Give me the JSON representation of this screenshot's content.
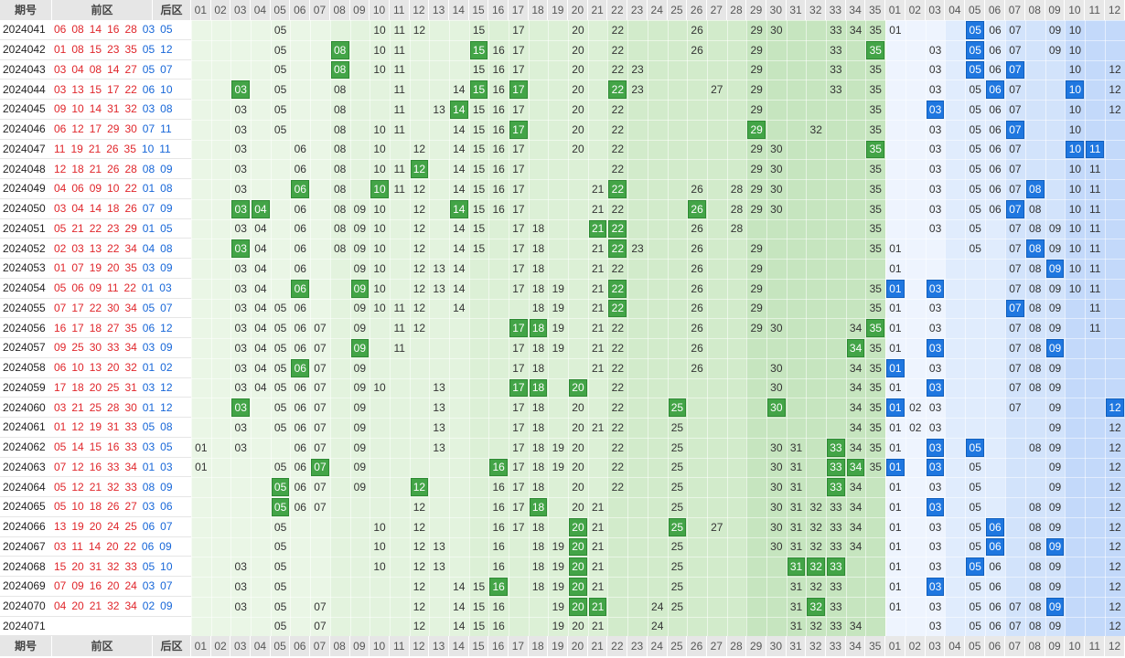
{
  "headers": {
    "issue": "期号",
    "front": "前区",
    "back": "后区"
  },
  "front_numbers": [
    "01",
    "02",
    "03",
    "04",
    "05",
    "06",
    "07",
    "08",
    "09",
    "10",
    "11",
    "12",
    "13",
    "14",
    "15",
    "16",
    "17",
    "18",
    "19",
    "20",
    "21",
    "22",
    "23",
    "24",
    "25",
    "26",
    "27",
    "28",
    "29",
    "30",
    "31",
    "32",
    "33",
    "34",
    "35"
  ],
  "back_numbers": [
    "01",
    "02",
    "03",
    "04",
    "05",
    "06",
    "07",
    "08",
    "09",
    "10",
    "11",
    "12"
  ],
  "colors": {
    "front_hit": "#43a447",
    "back_hit": "#1f77e0",
    "red_text": "#e0262b",
    "blue_text": "#1666d8"
  },
  "rows": [
    {
      "issue": "2024041",
      "front": [
        "06",
        "08",
        "14",
        "16",
        "28"
      ],
      "back": [
        "03",
        "05"
      ],
      "fshown": [
        5,
        10,
        11,
        12,
        15,
        17,
        20,
        22,
        26,
        29,
        30,
        33,
        34,
        35
      ],
      "bshown": [
        1,
        5,
        6,
        7,
        9,
        10
      ],
      "fhit": [],
      "bhit": [
        5
      ]
    },
    {
      "issue": "2024042",
      "front": [
        "01",
        "08",
        "15",
        "23",
        "35"
      ],
      "back": [
        "05",
        "12"
      ],
      "fshown": [
        5,
        8,
        10,
        11,
        15,
        16,
        17,
        20,
        22,
        26,
        29,
        33,
        35
      ],
      "bshown": [
        3,
        5,
        6,
        7,
        9,
        10
      ],
      "fhit": [
        8,
        15,
        35
      ],
      "bhit": [
        5
      ]
    },
    {
      "issue": "2024043",
      "front": [
        "03",
        "04",
        "08",
        "14",
        "27"
      ],
      "back": [
        "05",
        "07"
      ],
      "fshown": [
        5,
        8,
        10,
        11,
        15,
        16,
        17,
        20,
        22,
        23,
        29,
        33,
        35
      ],
      "bshown": [
        3,
        5,
        6,
        7,
        10,
        12
      ],
      "fhit": [
        8
      ],
      "bhit": [
        5,
        7
      ]
    },
    {
      "issue": "2024044",
      "front": [
        "03",
        "13",
        "15",
        "17",
        "22"
      ],
      "back": [
        "06",
        "10"
      ],
      "fshown": [
        3,
        5,
        8,
        11,
        14,
        15,
        16,
        17,
        20,
        22,
        23,
        27,
        29,
        33,
        35
      ],
      "bshown": [
        3,
        5,
        6,
        7,
        10,
        12
      ],
      "fhit": [
        3,
        15,
        17,
        22
      ],
      "bhit": [
        6,
        10
      ]
    },
    {
      "issue": "2024045",
      "front": [
        "09",
        "10",
        "14",
        "31",
        "32"
      ],
      "back": [
        "03",
        "08"
      ],
      "fshown": [
        3,
        5,
        8,
        11,
        13,
        14,
        15,
        16,
        17,
        20,
        22,
        29,
        35
      ],
      "bshown": [
        3,
        5,
        6,
        7,
        10,
        12
      ],
      "fhit": [
        14
      ],
      "bhit": [
        3
      ]
    },
    {
      "issue": "2024046",
      "front": [
        "06",
        "12",
        "17",
        "29",
        "30"
      ],
      "back": [
        "07",
        "11"
      ],
      "fshown": [
        3,
        5,
        8,
        10,
        11,
        14,
        15,
        16,
        17,
        20,
        22,
        29,
        32,
        35
      ],
      "bshown": [
        3,
        5,
        6,
        7,
        10
      ],
      "fhit": [
        17,
        29
      ],
      "bhit": [
        7
      ]
    },
    {
      "issue": "2024047",
      "front": [
        "11",
        "19",
        "21",
        "26",
        "35"
      ],
      "back": [
        "10",
        "11"
      ],
      "fshown": [
        3,
        6,
        8,
        10,
        12,
        14,
        15,
        16,
        17,
        20,
        22,
        29,
        30,
        35
      ],
      "bshown": [
        3,
        5,
        6,
        7,
        10,
        11
      ],
      "fhit": [
        35
      ],
      "bhit": [
        10,
        11
      ]
    },
    {
      "issue": "2024048",
      "front": [
        "12",
        "18",
        "21",
        "26",
        "28"
      ],
      "back": [
        "08",
        "09"
      ],
      "fshown": [
        3,
        6,
        8,
        10,
        11,
        12,
        14,
        15,
        16,
        17,
        22,
        29,
        30,
        35
      ],
      "bshown": [
        3,
        5,
        6,
        7,
        10,
        11
      ],
      "fhit": [
        12
      ],
      "bhit": []
    },
    {
      "issue": "2024049",
      "front": [
        "04",
        "06",
        "09",
        "10",
        "22"
      ],
      "back": [
        "01",
        "08"
      ],
      "fshown": [
        3,
        6,
        8,
        10,
        11,
        12,
        14,
        15,
        16,
        17,
        21,
        22,
        26,
        28,
        29,
        30,
        35
      ],
      "bshown": [
        3,
        5,
        6,
        7,
        8,
        10,
        11
      ],
      "fhit": [
        6,
        10,
        22
      ],
      "bhit": [
        8
      ]
    },
    {
      "issue": "2024050",
      "front": [
        "03",
        "04",
        "14",
        "18",
        "26"
      ],
      "back": [
        "07",
        "09"
      ],
      "fshown": [
        3,
        4,
        6,
        8,
        9,
        10,
        12,
        14,
        15,
        16,
        17,
        21,
        22,
        26,
        28,
        29,
        30,
        35
      ],
      "bshown": [
        3,
        5,
        6,
        7,
        8,
        10,
        11
      ],
      "fhit": [
        3,
        4,
        14,
        26
      ],
      "bhit": [
        7
      ]
    },
    {
      "issue": "2024051",
      "front": [
        "05",
        "21",
        "22",
        "23",
        "29"
      ],
      "back": [
        "01",
        "05"
      ],
      "fshown": [
        3,
        4,
        6,
        8,
        9,
        10,
        12,
        14,
        15,
        17,
        18,
        21,
        22,
        26,
        28,
        35
      ],
      "bshown": [
        3,
        5,
        7,
        8,
        9,
        10,
        11
      ],
      "fhit": [
        21,
        22
      ],
      "bhit": []
    },
    {
      "issue": "2024052",
      "front": [
        "02",
        "03",
        "13",
        "22",
        "34"
      ],
      "back": [
        "04",
        "08"
      ],
      "fshown": [
        3,
        4,
        6,
        8,
        9,
        10,
        12,
        14,
        15,
        17,
        18,
        21,
        22,
        23,
        26,
        29,
        35
      ],
      "bshown": [
        1,
        5,
        7,
        8,
        9,
        10,
        11
      ],
      "fhit": [
        3,
        22
      ],
      "bhit": [
        8
      ]
    },
    {
      "issue": "2024053",
      "front": [
        "01",
        "07",
        "19",
        "20",
        "35"
      ],
      "back": [
        "03",
        "09"
      ],
      "fshown": [
        3,
        4,
        6,
        9,
        10,
        12,
        13,
        14,
        17,
        18,
        21,
        22,
        26,
        29
      ],
      "bshown": [
        1,
        7,
        8,
        9,
        10,
        11
      ],
      "fhit": [],
      "bhit": [
        9
      ]
    },
    {
      "issue": "2024054",
      "front": [
        "05",
        "06",
        "09",
        "11",
        "22"
      ],
      "back": [
        "01",
        "03"
      ],
      "fshown": [
        3,
        4,
        6,
        9,
        10,
        12,
        13,
        14,
        17,
        18,
        19,
        21,
        22,
        26,
        29,
        35
      ],
      "bshown": [
        1,
        3,
        7,
        8,
        9,
        10,
        11
      ],
      "fhit": [
        6,
        9,
        22
      ],
      "bhit": [
        1,
        3
      ]
    },
    {
      "issue": "2024055",
      "front": [
        "07",
        "17",
        "22",
        "30",
        "34"
      ],
      "back": [
        "05",
        "07"
      ],
      "fshown": [
        3,
        4,
        5,
        6,
        9,
        10,
        11,
        12,
        14,
        18,
        19,
        21,
        22,
        26,
        29,
        35
      ],
      "bshown": [
        1,
        3,
        7,
        8,
        9,
        11
      ],
      "fhit": [
        22
      ],
      "bhit": [
        7
      ]
    },
    {
      "issue": "2024056",
      "front": [
        "16",
        "17",
        "18",
        "27",
        "35"
      ],
      "back": [
        "06",
        "12"
      ],
      "fshown": [
        3,
        4,
        5,
        6,
        7,
        9,
        11,
        12,
        17,
        18,
        19,
        21,
        22,
        26,
        29,
        30,
        34,
        35
      ],
      "bshown": [
        1,
        3,
        7,
        8,
        9,
        11
      ],
      "fhit": [
        17,
        18,
        35
      ],
      "bhit": []
    },
    {
      "issue": "2024057",
      "front": [
        "09",
        "25",
        "30",
        "33",
        "34"
      ],
      "back": [
        "03",
        "09"
      ],
      "fshown": [
        3,
        4,
        5,
        6,
        7,
        9,
        11,
        17,
        18,
        19,
        21,
        22,
        26,
        34,
        35
      ],
      "bshown": [
        1,
        3,
        7,
        8,
        9
      ],
      "fhit": [
        9,
        34
      ],
      "bhit": [
        3,
        9
      ]
    },
    {
      "issue": "2024058",
      "front": [
        "06",
        "10",
        "13",
        "20",
        "32"
      ],
      "back": [
        "01",
        "02"
      ],
      "fshown": [
        3,
        4,
        5,
        6,
        7,
        9,
        17,
        18,
        21,
        22,
        26,
        30,
        34,
        35
      ],
      "bshown": [
        1,
        3,
        7,
        8,
        9
      ],
      "fhit": [
        6
      ],
      "bhit": [
        1
      ]
    },
    {
      "issue": "2024059",
      "front": [
        "17",
        "18",
        "20",
        "25",
        "31"
      ],
      "back": [
        "03",
        "12"
      ],
      "fshown": [
        3,
        4,
        5,
        6,
        7,
        9,
        10,
        13,
        17,
        18,
        20,
        22,
        30,
        34,
        35
      ],
      "bshown": [
        1,
        3,
        7,
        8,
        9
      ],
      "fhit": [
        17,
        18,
        20
      ],
      "bhit": [
        3
      ]
    },
    {
      "issue": "2024060",
      "front": [
        "03",
        "21",
        "25",
        "28",
        "30"
      ],
      "back": [
        "01",
        "12"
      ],
      "fshown": [
        3,
        5,
        6,
        7,
        9,
        13,
        17,
        18,
        20,
        22,
        25,
        30,
        34,
        35
      ],
      "bshown": [
        1,
        2,
        3,
        7,
        9,
        12
      ],
      "fhit": [
        3,
        25,
        30
      ],
      "bhit": [
        1,
        12
      ]
    },
    {
      "issue": "2024061",
      "front": [
        "01",
        "12",
        "19",
        "31",
        "33"
      ],
      "back": [
        "05",
        "08"
      ],
      "fshown": [
        3,
        5,
        6,
        7,
        9,
        13,
        17,
        18,
        20,
        21,
        22,
        25,
        34,
        35
      ],
      "bshown": [
        1,
        2,
        3,
        9,
        12
      ],
      "fhit": [],
      "bhit": []
    },
    {
      "issue": "2024062",
      "front": [
        "05",
        "14",
        "15",
        "16",
        "33"
      ],
      "back": [
        "03",
        "05"
      ],
      "fshown": [
        1,
        3,
        6,
        7,
        9,
        13,
        17,
        18,
        19,
        20,
        22,
        25,
        30,
        31,
        33,
        34,
        35
      ],
      "bshown": [
        1,
        3,
        5,
        8,
        9,
        12
      ],
      "fhit": [
        33
      ],
      "bhit": [
        3,
        5
      ]
    },
    {
      "issue": "2024063",
      "front": [
        "07",
        "12",
        "16",
        "33",
        "34"
      ],
      "back": [
        "01",
        "03"
      ],
      "fshown": [
        1,
        5,
        6,
        7,
        9,
        16,
        17,
        18,
        19,
        20,
        22,
        25,
        30,
        31,
        33,
        34,
        35
      ],
      "bshown": [
        1,
        3,
        5,
        9,
        12
      ],
      "fhit": [
        7,
        16,
        33,
        34
      ],
      "bhit": [
        1,
        3
      ]
    },
    {
      "issue": "2024064",
      "front": [
        "05",
        "12",
        "21",
        "32",
        "33"
      ],
      "back": [
        "08",
        "09"
      ],
      "fshown": [
        5,
        6,
        7,
        9,
        12,
        16,
        17,
        18,
        20,
        22,
        25,
        30,
        31,
        33,
        34
      ],
      "bshown": [
        1,
        3,
        5,
        9,
        12
      ],
      "fhit": [
        5,
        12,
        33
      ],
      "bhit": []
    },
    {
      "issue": "2024065",
      "front": [
        "05",
        "10",
        "18",
        "26",
        "27"
      ],
      "back": [
        "03",
        "06"
      ],
      "fshown": [
        5,
        6,
        7,
        12,
        16,
        17,
        18,
        20,
        21,
        25,
        30,
        31,
        32,
        33,
        34
      ],
      "bshown": [
        1,
        3,
        5,
        8,
        9,
        12
      ],
      "fhit": [
        5,
        18
      ],
      "bhit": [
        3
      ]
    },
    {
      "issue": "2024066",
      "front": [
        "13",
        "19",
        "20",
        "24",
        "25"
      ],
      "back": [
        "06",
        "07"
      ],
      "fshown": [
        5,
        10,
        12,
        16,
        17,
        18,
        20,
        21,
        25,
        27,
        30,
        31,
        32,
        33,
        34
      ],
      "bshown": [
        1,
        3,
        5,
        6,
        8,
        9,
        12
      ],
      "fhit": [
        20,
        25
      ],
      "bhit": [
        6
      ]
    },
    {
      "issue": "2024067",
      "front": [
        "03",
        "11",
        "14",
        "20",
        "22"
      ],
      "back": [
        "06",
        "09"
      ],
      "fshown": [
        5,
        10,
        12,
        13,
        16,
        18,
        19,
        20,
        21,
        25,
        30,
        31,
        32,
        33,
        34
      ],
      "bshown": [
        1,
        3,
        5,
        6,
        8,
        9,
        12
      ],
      "fhit": [
        20
      ],
      "bhit": [
        6,
        9
      ]
    },
    {
      "issue": "2024068",
      "front": [
        "15",
        "20",
        "31",
        "32",
        "33"
      ],
      "back": [
        "05",
        "10"
      ],
      "fshown": [
        3,
        5,
        10,
        12,
        13,
        16,
        18,
        19,
        20,
        21,
        25,
        31,
        32,
        33
      ],
      "bshown": [
        1,
        3,
        5,
        6,
        8,
        9,
        12
      ],
      "fhit": [
        20,
        31,
        32,
        33
      ],
      "bhit": [
        5
      ]
    },
    {
      "issue": "2024069",
      "front": [
        "07",
        "09",
        "16",
        "20",
        "24"
      ],
      "back": [
        "03",
        "07"
      ],
      "fshown": [
        3,
        5,
        12,
        14,
        15,
        16,
        18,
        19,
        20,
        21,
        25,
        31,
        32,
        33
      ],
      "bshown": [
        1,
        3,
        5,
        6,
        8,
        9,
        12
      ],
      "fhit": [
        16,
        20
      ],
      "bhit": [
        3
      ]
    },
    {
      "issue": "2024070",
      "front": [
        "04",
        "20",
        "21",
        "32",
        "34"
      ],
      "back": [
        "02",
        "09"
      ],
      "fshown": [
        3,
        5,
        7,
        12,
        14,
        15,
        16,
        19,
        20,
        21,
        24,
        25,
        31,
        32,
        33
      ],
      "bshown": [
        1,
        3,
        5,
        6,
        7,
        8,
        9,
        12
      ],
      "fhit": [
        20,
        21,
        32
      ],
      "bhit": [
        9
      ]
    },
    {
      "issue": "2024071",
      "front": [],
      "back": [],
      "fshown": [
        5,
        7,
        12,
        14,
        15,
        16,
        19,
        20,
        21,
        24,
        31,
        32,
        33,
        34
      ],
      "bshown": [
        3,
        5,
        6,
        7,
        8,
        9,
        12
      ],
      "fhit": [],
      "bhit": []
    }
  ]
}
